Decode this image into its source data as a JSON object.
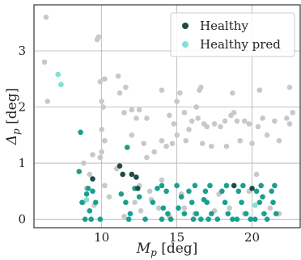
{
  "chart_data": {
    "type": "scatter",
    "xlabel": "M_p [deg]",
    "ylabel": "Δ_p [deg]",
    "xlim": [
      5.5,
      23.2
    ],
    "ylim": [
      -0.15,
      3.82
    ],
    "x_ticks": [
      10,
      15,
      20
    ],
    "y_ticks": [
      0,
      1,
      2,
      3
    ],
    "grid": true,
    "legend_position": "top-right",
    "colors": {
      "background_points": "#c8c8c8",
      "healthy": "#1f4a45",
      "healthy_pred": "#7ee0d6",
      "overlap": "#1a9f8f"
    },
    "series": [
      {
        "role": "background",
        "points": [
          [
            6.3,
            3.6
          ],
          [
            6.2,
            2.8
          ],
          [
            6.4,
            2.1
          ],
          [
            9.8,
            3.25
          ],
          [
            9.7,
            3.2
          ],
          [
            10.2,
            2.5
          ],
          [
            9.9,
            2.45
          ],
          [
            11.1,
            2.55
          ],
          [
            11.6,
            2.35
          ],
          [
            10.0,
            2.1
          ],
          [
            10.1,
            2.0
          ],
          [
            10.0,
            1.6
          ],
          [
            10.2,
            1.4
          ],
          [
            10.0,
            1.2
          ],
          [
            9.9,
            1.1
          ],
          [
            8.8,
            1.0
          ],
          [
            9.4,
            1.15
          ],
          [
            11.2,
            2.25
          ],
          [
            12.0,
            1.95
          ],
          [
            11.5,
            1.9
          ],
          [
            12.3,
            1.8
          ],
          [
            12.5,
            1.95
          ],
          [
            12.0,
            1.5
          ],
          [
            12.8,
            1.35
          ],
          [
            13.0,
            1.8
          ],
          [
            14.0,
            2.3
          ],
          [
            15.0,
            2.1
          ],
          [
            15.2,
            2.25
          ],
          [
            14.5,
            1.85
          ],
          [
            14.8,
            1.7
          ],
          [
            14.0,
            1.4
          ],
          [
            14.3,
            1.3
          ],
          [
            14.7,
            1.35
          ],
          [
            15.0,
            1.5
          ],
          [
            15.5,
            1.9
          ],
          [
            15.8,
            1.6
          ],
          [
            16.0,
            1.75
          ],
          [
            16.3,
            2.0
          ],
          [
            16.5,
            2.3
          ],
          [
            16.6,
            2.35
          ],
          [
            16.4,
            1.8
          ],
          [
            16.8,
            1.7
          ],
          [
            17.0,
            1.65
          ],
          [
            17.5,
            1.7
          ],
          [
            17.9,
            1.65
          ],
          [
            18.2,
            1.75
          ],
          [
            18.7,
            2.25
          ],
          [
            18.6,
            1.85
          ],
          [
            18.8,
            1.9
          ],
          [
            19.0,
            1.75
          ],
          [
            19.5,
            1.75
          ],
          [
            19.8,
            1.7
          ],
          [
            20.0,
            1.35
          ],
          [
            20.5,
            2.3
          ],
          [
            20.4,
            1.65
          ],
          [
            20.7,
            1.8
          ],
          [
            21.0,
            1.5
          ],
          [
            21.5,
            1.75
          ],
          [
            21.8,
            1.4
          ],
          [
            22.5,
            2.35
          ],
          [
            22.3,
            1.8
          ],
          [
            22.5,
            1.7
          ],
          [
            22.7,
            1.9
          ],
          [
            15.6,
            1.4
          ],
          [
            16.7,
            1.35
          ],
          [
            17.3,
            1.3
          ],
          [
            18.3,
            1.3
          ],
          [
            19.2,
            1.4
          ],
          [
            13.0,
            1.1
          ],
          [
            13.5,
            1.2
          ],
          [
            14.0,
            0.7
          ],
          [
            11.0,
            0.9
          ],
          [
            12.5,
            0.6
          ],
          [
            13.2,
            0.5
          ],
          [
            9.2,
            0.8
          ],
          [
            10.2,
            0.6
          ],
          [
            9.0,
            0.55
          ],
          [
            8.8,
            0.3
          ],
          [
            9.5,
            0.25
          ],
          [
            10.5,
            0.4
          ],
          [
            12.2,
            0.3
          ],
          [
            13.8,
            0.2
          ],
          [
            14.5,
            0.05
          ],
          [
            16.2,
            0.1
          ],
          [
            17.5,
            0.15
          ],
          [
            18.5,
            0.2
          ],
          [
            19.5,
            0.1
          ],
          [
            21.2,
            0.2
          ],
          [
            21.8,
            0.1
          ],
          [
            15.3,
            0.45
          ],
          [
            17.8,
            0.45
          ],
          [
            19.8,
            0.5
          ],
          [
            20.3,
            0.8
          ],
          [
            11.5,
            0.05
          ],
          [
            12.6,
            0.15
          ],
          [
            15.5,
            0.2
          ],
          [
            13.3,
            0.35
          ]
        ]
      },
      {
        "role": "overlap",
        "points": [
          [
            8.6,
            1.55
          ],
          [
            8.5,
            0.85
          ],
          [
            9.1,
            0.55
          ],
          [
            9.0,
            0.45
          ],
          [
            9.4,
            0.5
          ],
          [
            9.6,
            0.3
          ],
          [
            8.7,
            0.3
          ],
          [
            8.9,
            0.0
          ],
          [
            9.3,
            0.0
          ],
          [
            9.9,
            0.0
          ],
          [
            9.2,
            0.15
          ],
          [
            11.7,
            1.28
          ],
          [
            11.3,
            0.45
          ],
          [
            11.6,
            0.3
          ],
          [
            12.2,
            0.55
          ],
          [
            12.5,
            0.4
          ],
          [
            11.9,
            0.1
          ],
          [
            11.8,
            0.0
          ],
          [
            12.9,
            0.0
          ],
          [
            13.4,
            0.3
          ],
          [
            13.7,
            0.55
          ],
          [
            14.0,
            0.6
          ],
          [
            14.3,
            0.5
          ],
          [
            14.1,
            0.2
          ],
          [
            14.4,
            0.1
          ],
          [
            14.0,
            0.0
          ],
          [
            14.6,
            0.0
          ],
          [
            15.0,
            0.6
          ],
          [
            15.3,
            0.4
          ],
          [
            15.1,
            0.2
          ],
          [
            15.5,
            0.1
          ],
          [
            15.8,
            0.5
          ],
          [
            16.2,
            0.6
          ],
          [
            16.0,
            0.3
          ],
          [
            16.3,
            0.1
          ],
          [
            16.1,
            0.0
          ],
          [
            16.6,
            0.0
          ],
          [
            16.9,
            0.5
          ],
          [
            17.2,
            0.6
          ],
          [
            17.0,
            0.3
          ],
          [
            17.3,
            0.1
          ],
          [
            17.1,
            0.0
          ],
          [
            17.7,
            0.0
          ],
          [
            18.0,
            0.5
          ],
          [
            18.3,
            0.6
          ],
          [
            18.2,
            0.3
          ],
          [
            18.4,
            0.1
          ],
          [
            18.7,
            0.0
          ],
          [
            19.0,
            0.0
          ],
          [
            19.1,
            0.5
          ],
          [
            19.4,
            0.6
          ],
          [
            19.3,
            0.3
          ],
          [
            19.6,
            0.1
          ],
          [
            19.9,
            0.0
          ],
          [
            20.2,
            0.0
          ],
          [
            20.3,
            0.5
          ],
          [
            20.6,
            0.6
          ],
          [
            20.5,
            0.3
          ],
          [
            20.8,
            0.1
          ],
          [
            21.0,
            0.0
          ],
          [
            21.3,
            0.5
          ],
          [
            21.5,
            0.6
          ],
          [
            21.4,
            0.3
          ],
          [
            21.6,
            0.1
          ],
          [
            20.7,
            0.4
          ],
          [
            16.8,
            0.35
          ]
        ]
      },
      {
        "name": "Healthy",
        "role": "healthy",
        "points": [
          [
            9.4,
            0.72
          ],
          [
            11.2,
            0.95
          ],
          [
            11.4,
            0.8
          ],
          [
            12.0,
            0.8
          ],
          [
            12.3,
            0.75
          ],
          [
            12.4,
            0.55
          ],
          [
            18.8,
            0.6
          ],
          [
            20.0,
            0.55
          ]
        ]
      },
      {
        "name": "Healthy pred",
        "role": "healthy_pred",
        "points": [
          [
            7.1,
            2.58
          ],
          [
            7.3,
            2.4
          ],
          [
            9.0,
            0.35
          ],
          [
            20.2,
            0.25
          ]
        ]
      }
    ]
  }
}
